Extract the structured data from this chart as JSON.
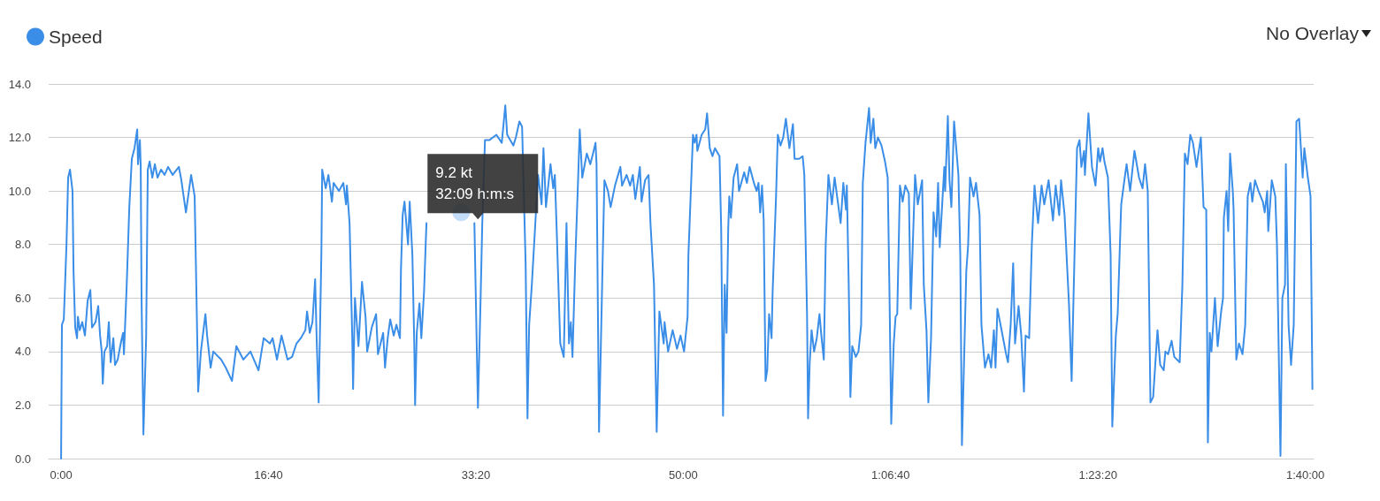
{
  "chart_data": {
    "type": "line",
    "x": [
      0,
      4,
      13,
      26,
      34,
      43,
      55,
      60,
      68,
      77,
      81,
      90,
      102,
      115,
      128,
      141,
      149,
      166,
      179,
      188,
      196,
      201,
      209,
      222,
      230,
      239,
      252,
      260,
      273,
      290,
      299,
      303,
      316,
      329,
      333,
      341,
      354,
      367,
      371,
      380,
      384,
      388,
      397,
      410,
      418,
      427,
      440,
      452,
      465,
      482,
      499,
      516,
      538,
      568,
      580,
      602,
      627,
      644,
      653,
      661,
      674,
      696,
      704,
      721,
      734,
      772,
      794,
      824,
      845,
      879,
      913,
      952,
      977,
      1007,
      1020,
      1041,
      1063,
      1092,
      1114,
      1135,
      1156,
      1178,
      1186,
      1199,
      1212,
      1225,
      1233,
      1242,
      1255,
      1259,
      1276,
      1289,
      1306,
      1314,
      1340,
      1361,
      1374,
      1378,
      1391,
      1404,
      1408,
      1417,
      1434,
      1451,
      1468,
      1476,
      1498,
      1519,
      1528,
      1553,
      1562,
      1575,
      1587,
      1604,
      1617,
      1634,
      1639,
      1647,
      1656,
      1673,
      1681,
      1694,
      1703,
      1707,
      1715,
      1728,
      1737,
      1750,
      1758,
      1762,
      1880,
      1993,
      2010,
      2023,
      2031,
      2044,
      2065,
      2099,
      2125,
      2142,
      2151,
      2181,
      2193,
      2210,
      2223,
      2240,
      2249,
      2257,
      2270,
      2300,
      2317,
      2326,
      2338,
      2360,
      2373,
      2381,
      2390,
      2407,
      2424,
      2437,
      2449,
      2458,
      2466,
      2479,
      2492,
      2501,
      2513,
      2535,
      2552,
      2565,
      2577,
      2582,
      2594,
      2612,
      2620,
      2637,
      2650,
      2671,
      2697,
      2705,
      2727,
      2744,
      2757,
      2769,
      2791,
      2799,
      2816,
      2833,
      2842,
      2859,
      2872,
      2885,
      2906,
      2910,
      2927,
      2949,
      2970,
      2987,
      3004,
      3021,
      3025,
      3047,
      3055,
      3064,
      3068,
      3089,
      3106,
      3115,
      3128,
      3141,
      3153,
      3175,
      3183,
      3192,
      3200,
      3209,
      3217,
      3222,
      3230,
      3243,
      3260,
      3269,
      3294,
      3307,
      3320,
      3341,
      3354,
      3363,
      3371,
      3380,
      3388,
      3397,
      3405,
      3414,
      3426,
      3431,
      3448,
      3456,
      3469,
      3482,
      3495,
      3512,
      3529,
      3537,
      3559,
      3576,
      3584,
      3597,
      3602,
      3610,
      3619,
      3631,
      3644,
      3657,
      3666,
      3678,
      3687,
      3700,
      3717,
      3730,
      3759,
      3772,
      3785,
      3789,
      3798,
      3806,
      3815,
      3832,
      3845,
      3858,
      3866,
      3879,
      3896,
      3904,
      3917,
      3926,
      3939,
      3956,
      3973,
      3986,
      3994,
      4003,
      4015,
      4024,
      4032,
      4045,
      4058,
      4071,
      4088,
      4097,
      4118,
      4131,
      4152,
      4160,
      4173,
      4182,
      4195,
      4207,
      4220,
      4229,
      4237,
      4259,
      4263,
      4276,
      4284,
      4293,
      4306,
      4327,
      4336,
      4344,
      4365,
      4374,
      4383,
      4400,
      4412,
      4429,
      4438,
      4455,
      4472,
      4485,
      4498,
      4506,
      4515,
      4540,
      4557,
      4566,
      4579,
      4591,
      4600,
      4617,
      4630,
      4643,
      4651,
      4668,
      4681,
      4694,
      4711,
      4728,
      4741,
      4762,
      4783,
      4796,
      4813,
      4822,
      4839,
      4860,
      4873,
      4882,
      4899,
      4911,
      4920,
      4933,
      4937,
      4954,
      4971,
      4988,
      5001,
      5010,
      5022,
      5031,
      5048,
      5061,
      5069,
      5086,
      5095,
      5112,
      5129,
      5138,
      5155,
      5176,
      5198,
      5215,
      5227,
      5240,
      5253,
      5266,
      5287,
      5300,
      5317,
      5325,
      5338,
      5355,
      5368,
      5394,
      5407,
      5419,
      5432,
      5445,
      5458,
      5475,
      5496,
      5509,
      5522,
      5530,
      5539,
      5547,
      5564,
      5577,
      5594,
      5603,
      5607,
      5620,
      5628,
      5637,
      5650,
      5654,
      5667,
      5680,
      5697,
      5710,
      5722,
      5735,
      5744,
      5757,
      5774,
      5795,
      5804,
      5816,
      5821,
      5838,
      5855,
      5863,
      5880,
      5889,
      5902,
      5906,
      5919,
      5931,
      5944,
      5957,
      5970,
      5987,
      5995,
      6012,
      6025,
      6034
    ],
    "series": [
      {
        "name": "Speed",
        "color": "#3a8ee8",
        "values": [
          0.0,
          5.0,
          5.2,
          8.0,
          10.5,
          10.8,
          10.0,
          7.0,
          4.9,
          4.5,
          5.3,
          4.8,
          5.1,
          4.6,
          5.9,
          6.3,
          4.9,
          5.1,
          5.7,
          4.6,
          4.0,
          2.8,
          4.0,
          4.2,
          5.1,
          3.6,
          4.5,
          3.5,
          3.7,
          4.4,
          4.7,
          3.9,
          6.4,
          9.4,
          10.0,
          11.2,
          11.6,
          12.3,
          11.0,
          11.9,
          10.9,
          6.0,
          0.9,
          4.5,
          10.8,
          11.1,
          10.5,
          11.0,
          10.5,
          10.8,
          10.6,
          10.9,
          10.6,
          10.9,
          10.4,
          9.2,
          10.6,
          9.8,
          6.0,
          2.5,
          4.0,
          5.4,
          4.6,
          3.4,
          4.0,
          3.7,
          3.4,
          2.9,
          4.2,
          3.7,
          4.0,
          3.3,
          4.5,
          4.3,
          4.5,
          3.7,
          4.6,
          3.7,
          3.8,
          4.3,
          4.5,
          4.8,
          5.5,
          4.7,
          5.1,
          6.7,
          4.3,
          2.1,
          7.6,
          10.8,
          10.1,
          10.6,
          9.6,
          10.3,
          10.0,
          10.3,
          9.5,
          10.2,
          8.8,
          4.5,
          2.6,
          6.0,
          4.2,
          6.6,
          5.3,
          4.0,
          4.9,
          5.4,
          3.9,
          4.7,
          3.4,
          4.5,
          5.2,
          4.6,
          5.0,
          4.5,
          7.1,
          9.1,
          9.6,
          8.0,
          9.6,
          7.6,
          4.3,
          2.0,
          4.7,
          5.8,
          4.5,
          6.2,
          8.0,
          8.8,
          null,
          8.8,
          1.9,
          6.0,
          8.8,
          11.9,
          11.9,
          12.1,
          11.8,
          13.2,
          12.1,
          11.7,
          12.0,
          12.6,
          12.4,
          7.3,
          1.5,
          5.0,
          6.5,
          10.6,
          9.5,
          11.6,
          9.4,
          11.0,
          10.1,
          10.6,
          8.5,
          4.3,
          3.8,
          8.8,
          4.3,
          5.1,
          3.8,
          7.3,
          10.2,
          12.3,
          10.5,
          11.4,
          11.0,
          11.4,
          11.8,
          11.0,
          1.0,
          7.6,
          10.4,
          10.0,
          9.4,
          10.2,
          10.9,
          10.2,
          10.6,
          10.2,
          10.6,
          9.7,
          10.9,
          9.6,
          10.4,
          10.6,
          8.8,
          6.5,
          1.0,
          5.5,
          4.3,
          5.1,
          4.0,
          4.8,
          4.1,
          4.6,
          4.0,
          5.3,
          7.6,
          12.1,
          11.8,
          12.1,
          11.5,
          12.1,
          12.3,
          12.9,
          11.6,
          11.3,
          11.6,
          11.3,
          8.6,
          1.6,
          6.5,
          4.7,
          8.6,
          9.8,
          9.0,
          10.5,
          11.0,
          10.0,
          10.7,
          10.3,
          10.9,
          10.3,
          10.0,
          10.3,
          9.2,
          10.2,
          8.9,
          2.9,
          3.3,
          5.4,
          4.5,
          6.2,
          9.9,
          12.1,
          11.7,
          12.0,
          12.7,
          11.6,
          12.5,
          11.2,
          11.2,
          11.3,
          10.6,
          5.4,
          1.5,
          3.6,
          4.8,
          4.0,
          4.5,
          5.4,
          4.6,
          3.7,
          8.0,
          10.6,
          9.5,
          10.5,
          8.8,
          10.3,
          9.3,
          10.2,
          6.5,
          2.3,
          4.2,
          3.8,
          4.0,
          5.0,
          10.3,
          11.8,
          13.1,
          11.8,
          12.7,
          11.6,
          12.0,
          11.7,
          11.1,
          10.5,
          6.5,
          1.3,
          4.3,
          5.3,
          5.4,
          10.2,
          9.6,
          10.2,
          9.9,
          5.6,
          10.6,
          9.5,
          10.4,
          6.5,
          4.8,
          2.1,
          4.5,
          9.2,
          8.3,
          10.3,
          7.9,
          10.9,
          10.0,
          12.8,
          10.4,
          9.4,
          12.6,
          10.6,
          7.6,
          0.5,
          7.0,
          8.0,
          10.5,
          9.8,
          10.3,
          9.1,
          5.0,
          3.4,
          3.9,
          3.4,
          4.8,
          3.4,
          5.6,
          4.6,
          3.9,
          3.6,
          5.0,
          7.3,
          4.3,
          5.7,
          4.6,
          2.5,
          4.6,
          4.5,
          8.0,
          10.2,
          8.8,
          10.2,
          9.5,
          10.4,
          8.9,
          10.2,
          9.1,
          10.4,
          9.1,
          5.8,
          2.9,
          6.0,
          11.6,
          11.9,
          10.9,
          11.5,
          10.6,
          12.9,
          10.9,
          10.2,
          11.6,
          11.1,
          11.6,
          11.1,
          10.5,
          7.6,
          1.2,
          4.6,
          5.4,
          9.5,
          10.5,
          11.0,
          10.0,
          11.5,
          10.5,
          10.1,
          11.0,
          10.0,
          2.1,
          2.3,
          4.8,
          3.5,
          3.3,
          4.0,
          3.9,
          4.4,
          3.8,
          3.6,
          6.5,
          11.4,
          11.0,
          12.1,
          11.8,
          10.9,
          12.0,
          9.4,
          9.3,
          0.6,
          4.7,
          4.0,
          6.0,
          4.2,
          5.5,
          6.0,
          9.0,
          10.0,
          8.5,
          11.4,
          10.0,
          9.3,
          3.7,
          4.3,
          3.9,
          5.0,
          9.8,
          10.3,
          9.6,
          10.4,
          10.0,
          9.6,
          9.2,
          10.0,
          8.5,
          10.4,
          9.8,
          8.0,
          0.1,
          6.0,
          6.5,
          11.0,
          5.0,
          3.5,
          5.0,
          12.6,
          12.7,
          10.5,
          11.6,
          10.5,
          9.8,
          2.6
        ]
      }
    ],
    "xlim": [
      -60,
      6040
    ],
    "xticks": [
      {
        "value": 0,
        "label": "0:00"
      },
      {
        "value": 1000,
        "label": "16:40"
      },
      {
        "value": 2000,
        "label": "33:20"
      },
      {
        "value": 3000,
        "label": "50:00"
      },
      {
        "value": 4000,
        "label": "1:06:40"
      },
      {
        "value": 5000,
        "label": "1:23:20"
      },
      {
        "value": 6000,
        "label": "1:40:00"
      }
    ],
    "ylim": [
      0,
      14
    ],
    "yticks": [
      {
        "value": 0,
        "label": "0.0"
      },
      {
        "value": 2,
        "label": "2.0"
      },
      {
        "value": 4,
        "label": "4.0"
      },
      {
        "value": 6,
        "label": "6.0"
      },
      {
        "value": 8,
        "label": "8.0"
      },
      {
        "value": 10,
        "label": "10.0"
      },
      {
        "value": 12,
        "label": "12.0"
      },
      {
        "value": 14,
        "label": "14.0"
      }
    ],
    "grid": "y",
    "legend": "top left",
    "marker": "none",
    "line_style": "solid",
    "annotations": [
      "No Overlay",
      {
        "text": "9.2 kt\n32:09 h:m:s",
        "x": 1929,
        "y": 9.2
      }
    ]
  }
}
